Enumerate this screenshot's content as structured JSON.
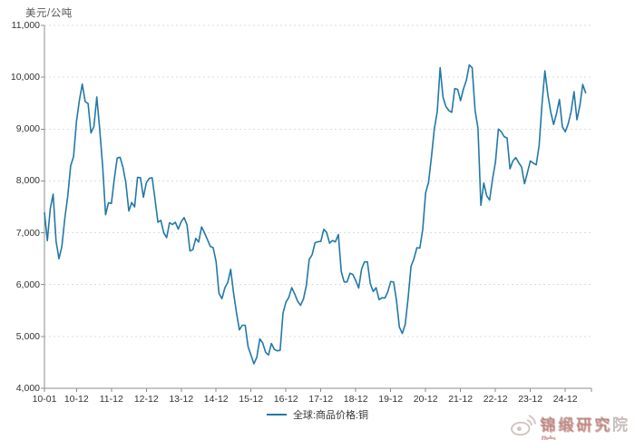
{
  "chart_data": {
    "type": "line",
    "title": "",
    "unit_label": "美元/公吨",
    "grid": "horizontal-dashed",
    "legend_position": "bottom-center",
    "line_color": "#2279a7",
    "axis_color": "#8c8c8c",
    "grid_color": "#dcdcdc",
    "ylim": [
      4000,
      11000
    ],
    "y_ticks": [
      4000,
      5000,
      6000,
      7000,
      8000,
      9000,
      10000,
      11000
    ],
    "y_tick_labels": [
      "4,000",
      "5,000",
      "6,000",
      "7,000",
      "8,000",
      "9,000",
      "10,000",
      "11,000"
    ],
    "x_tick_labels": [
      "10-01",
      "10-12",
      "11-12",
      "12-12",
      "13-12",
      "14-12",
      "15-12",
      "16-12",
      "17-12",
      "18-12",
      "19-12",
      "20-12",
      "21-12",
      "22-12",
      "23-12",
      "24-12"
    ],
    "x_start": "2010-01",
    "x_freq": "monthly",
    "series": [
      {
        "name": "全球:商品价格:铜",
        "values": [
          7386,
          6848,
          7462,
          7745,
          6838,
          6499,
          6735,
          7284,
          7709,
          8292,
          8470,
          9147,
          9555,
          9867,
          9530,
          9492,
          8927,
          9045,
          9619,
          9001,
          8300,
          7347,
          7581,
          7565,
          8040,
          8441,
          8457,
          8260,
          7956,
          7420,
          7584,
          7498,
          8067,
          8063,
          7683,
          7966,
          8047,
          8061,
          7645,
          7203,
          7240,
          7000,
          6907,
          7193,
          7159,
          7203,
          7071,
          7214,
          7291,
          7149,
          6650,
          6674,
          6891,
          6821,
          7113,
          7001,
          6872,
          6737,
          6713,
          6446,
          5830,
          5729,
          5939,
          6042,
          6295,
          5833,
          5457,
          5127,
          5217,
          5216,
          4800,
          4639,
          4472,
          4599,
          4954,
          4873,
          4695,
          4642,
          4865,
          4751,
          4722,
          4731,
          5451,
          5660,
          5755,
          5941,
          5824,
          5684,
          5600,
          5720,
          5985,
          6486,
          6577,
          6808,
          6827,
          6834,
          7066,
          7007,
          6799,
          6851,
          6825,
          6966,
          6250,
          6051,
          6051,
          6219,
          6195,
          6075,
          5932,
          6300,
          6439,
          6438,
          6017,
          5868,
          5940,
          5710,
          5746,
          5742,
          5860,
          6059,
          6049,
          5688,
          5178,
          5058,
          5234,
          5742,
          6354,
          6497,
          6712,
          6703,
          7063,
          7772,
          7971,
          8460,
          9005,
          9336,
          10184,
          9612,
          9434,
          9357,
          9324,
          9780,
          9766,
          9550,
          9775,
          9941,
          10237,
          10182,
          9362,
          9021,
          7530,
          7959,
          7716,
          7630,
          8031,
          8367,
          9000,
          8950,
          8854,
          8829,
          8234,
          8386,
          8451,
          8352,
          8266,
          7947,
          8160,
          8385,
          8343,
          8311,
          8680,
          9486,
          10124,
          9667,
          9331,
          9089,
          9303,
          9572,
          9049,
          8948,
          9100,
          9330,
          9720,
          9180,
          9450,
          9860,
          9700
        ]
      }
    ]
  },
  "legend": {
    "label": "全球:商品价格:铜"
  },
  "watermark": {
    "text": "锦缎研究院",
    "icon": "weibo-icon"
  }
}
